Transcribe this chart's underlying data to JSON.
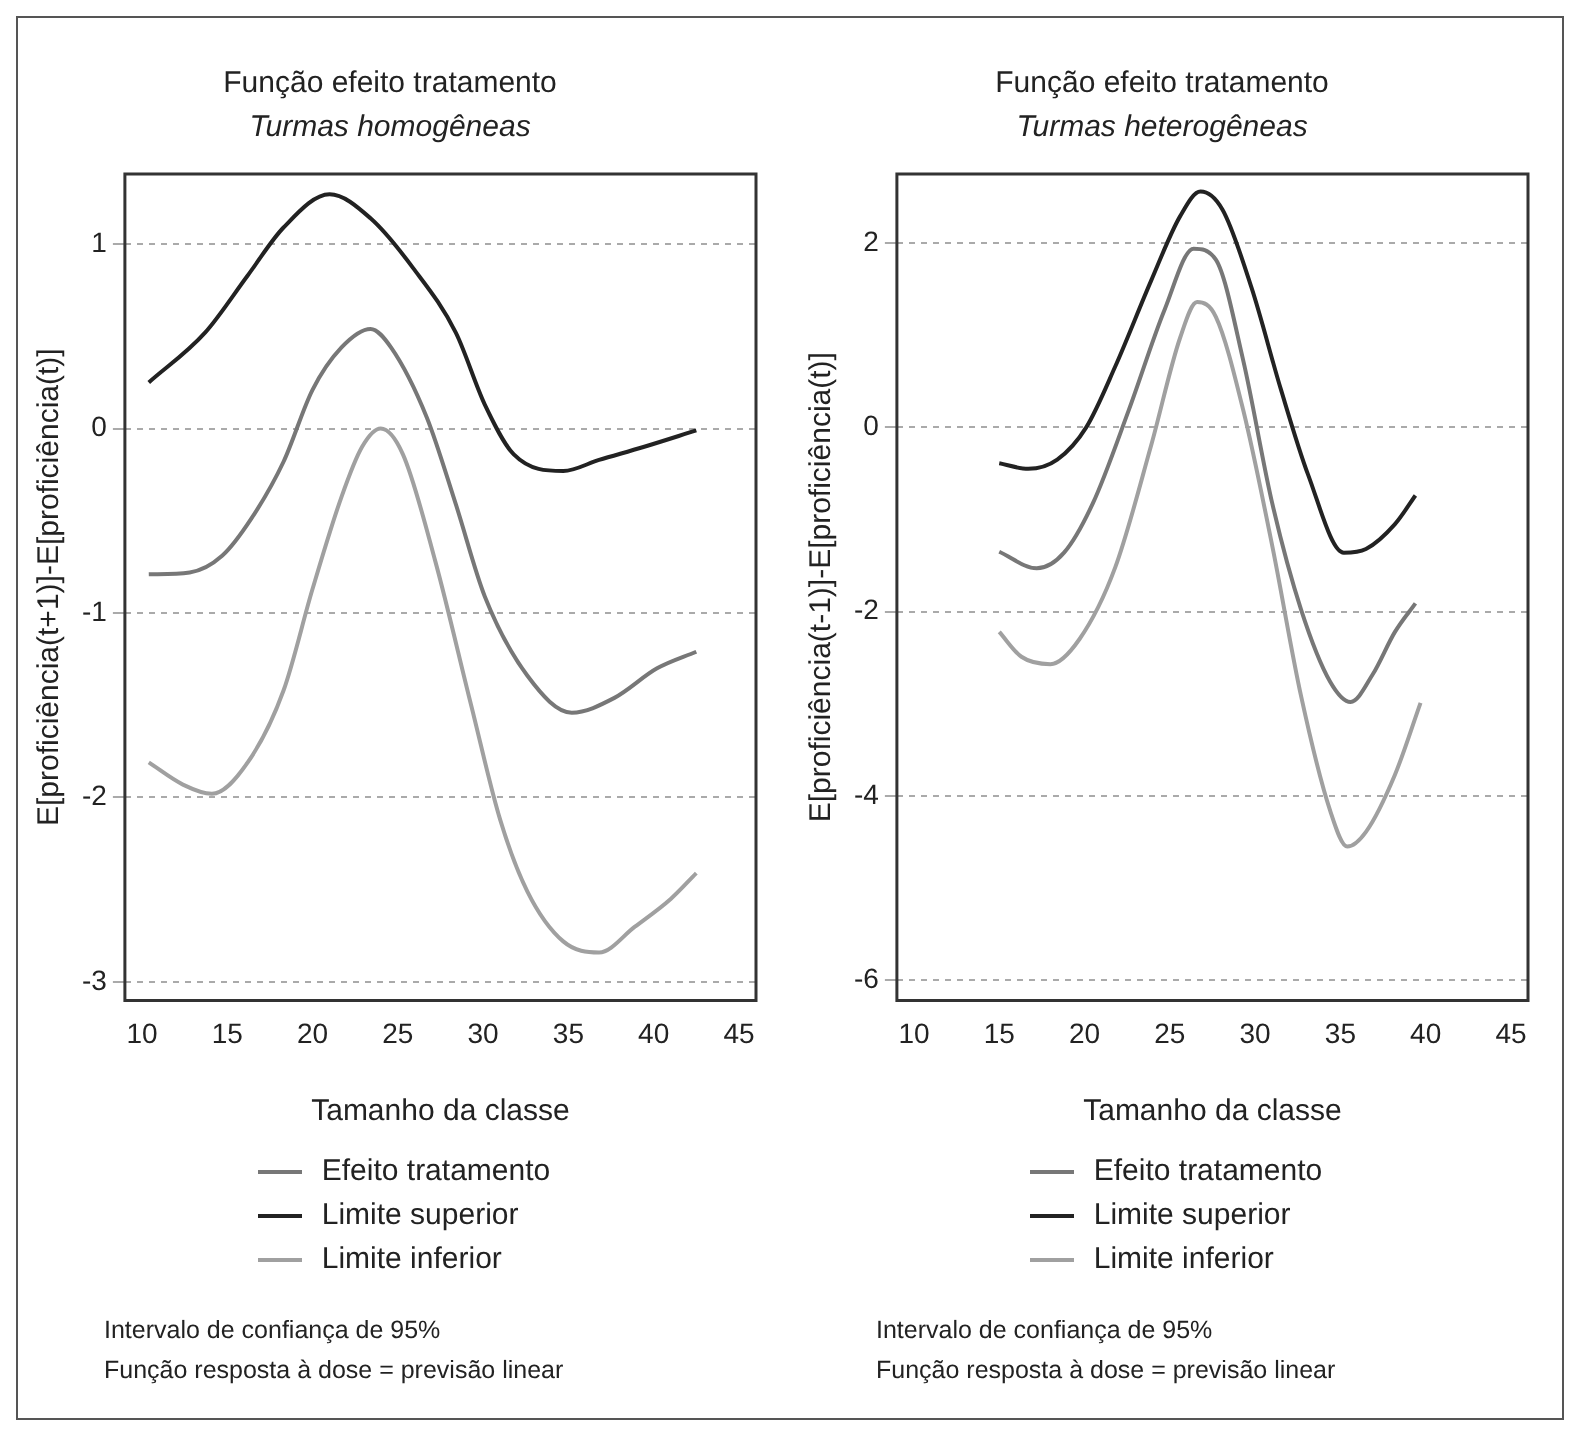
{
  "chart_data": [
    {
      "type": "line",
      "title": "Função efeito tratamento",
      "subtitle": "Turmas homogêneas",
      "xlabel": "Tamanho da classe",
      "ylabel": "E[proficiência(t+1)]-E[proficiência(t)]",
      "xlim": [
        9,
        46
      ],
      "xticks": [
        10,
        15,
        20,
        25,
        30,
        35,
        40,
        45
      ],
      "ylim": [
        -3.1,
        1.38
      ],
      "yticks": [
        -3,
        -2,
        -1,
        0,
        1
      ],
      "grid": "y",
      "legend": "bottom",
      "line_style": "solid",
      "marker": "none",
      "annotations": [
        "Intervalo de confiança de 95%",
        "Função resposta à dose = previsão linear"
      ],
      "series": [
        {
          "name": "Efeito tratamento",
          "color": "#777777",
          "x": [
            10.4,
            12.8,
            14.7,
            16.4,
            18.3,
            20.0,
            21.7,
            23.4,
            24.6,
            26.7,
            28.4,
            30.1,
            32.6,
            35.2,
            37.7,
            40.2,
            42.5
          ],
          "values": [
            -0.79,
            -0.78,
            -0.69,
            -0.49,
            -0.18,
            0.21,
            0.44,
            0.54,
            0.44,
            0.06,
            -0.41,
            -0.91,
            -1.34,
            -1.54,
            -1.46,
            -1.3,
            -1.21
          ]
        },
        {
          "name": "Limite superior",
          "color": "#222222",
          "x": [
            10.4,
            13.7,
            16.2,
            18.3,
            21.0,
            23.4,
            25.9,
            28.4,
            30.1,
            31.8,
            34.7,
            36.8,
            39.4,
            42.5
          ],
          "values": [
            0.25,
            0.52,
            0.83,
            1.09,
            1.27,
            1.14,
            0.87,
            0.52,
            0.13,
            -0.14,
            -0.23,
            -0.17,
            -0.1,
            -0.01
          ]
        },
        {
          "name": "Limite inferior",
          "color": "#a0a0a0",
          "x": [
            10.4,
            12.4,
            14.1,
            16.2,
            18.3,
            20.0,
            21.7,
            22.9,
            24.0,
            25.3,
            27.2,
            29.3,
            31.0,
            32.6,
            34.7,
            36.8,
            38.9,
            41.0,
            42.5
          ],
          "values": [
            -1.81,
            -1.93,
            -1.98,
            -1.81,
            -1.42,
            -0.87,
            -0.37,
            -0.1,
            0.0,
            -0.14,
            -0.72,
            -1.5,
            -2.12,
            -2.51,
            -2.78,
            -2.84,
            -2.7,
            -2.55,
            -2.41
          ]
        }
      ]
    },
    {
      "type": "line",
      "title": "Função efeito tratamento",
      "subtitle": "Turmas heterogêneas",
      "xlabel": "Tamanho da classe",
      "ylabel": "E[proficiência(t-1)]-E[proficiência(t)]",
      "xlim": [
        9,
        46
      ],
      "xticks": [
        10,
        15,
        20,
        25,
        30,
        35,
        40,
        45
      ],
      "ylim": [
        -6.22,
        2.75
      ],
      "yticks": [
        -6,
        -4,
        -2,
        0,
        2
      ],
      "grid": "y",
      "legend": "bottom",
      "line_style": "solid",
      "marker": "none",
      "annotations": [
        "Intervalo de confiança de 95%",
        "Função resposta à dose = previsão linear"
      ],
      "series": [
        {
          "name": "Efeito tratamento",
          "color": "#777777",
          "x": [
            15.0,
            17.2,
            18.8,
            20.5,
            22.6,
            24.7,
            26.4,
            27.7,
            29.3,
            31.0,
            32.7,
            34.4,
            35.6,
            36.9,
            38.2,
            39.4
          ],
          "values": [
            -1.35,
            -1.53,
            -1.36,
            -0.82,
            0.19,
            1.28,
            1.94,
            1.82,
            0.73,
            -0.82,
            -1.98,
            -2.76,
            -2.98,
            -2.68,
            -2.22,
            -1.91
          ]
        },
        {
          "name": "Limite superior",
          "color": "#222222",
          "x": [
            15.0,
            16.7,
            18.4,
            20.1,
            21.8,
            23.9,
            25.6,
            26.8,
            28.1,
            29.8,
            31.5,
            33.1,
            35.2,
            36.5,
            38.2,
            39.4
          ],
          "values": [
            -0.39,
            -0.45,
            -0.35,
            0.0,
            0.66,
            1.59,
            2.29,
            2.56,
            2.36,
            1.51,
            0.42,
            -0.51,
            -1.36,
            -1.32,
            -1.05,
            -0.74
          ]
        },
        {
          "name": "Limite inferior",
          "color": "#a0a0a0",
          "x": [
            15.0,
            16.3,
            18.0,
            19.7,
            21.8,
            23.9,
            25.6,
            26.6,
            27.7,
            29.3,
            31.0,
            32.7,
            34.4,
            35.4,
            36.5,
            38.2,
            39.7
          ],
          "values": [
            -2.22,
            -2.49,
            -2.57,
            -2.3,
            -1.52,
            -0.2,
            0.97,
            1.36,
            1.2,
            0.19,
            -1.28,
            -2.92,
            -4.16,
            -4.55,
            -4.39,
            -3.77,
            -2.99
          ]
        }
      ]
    }
  ]
}
